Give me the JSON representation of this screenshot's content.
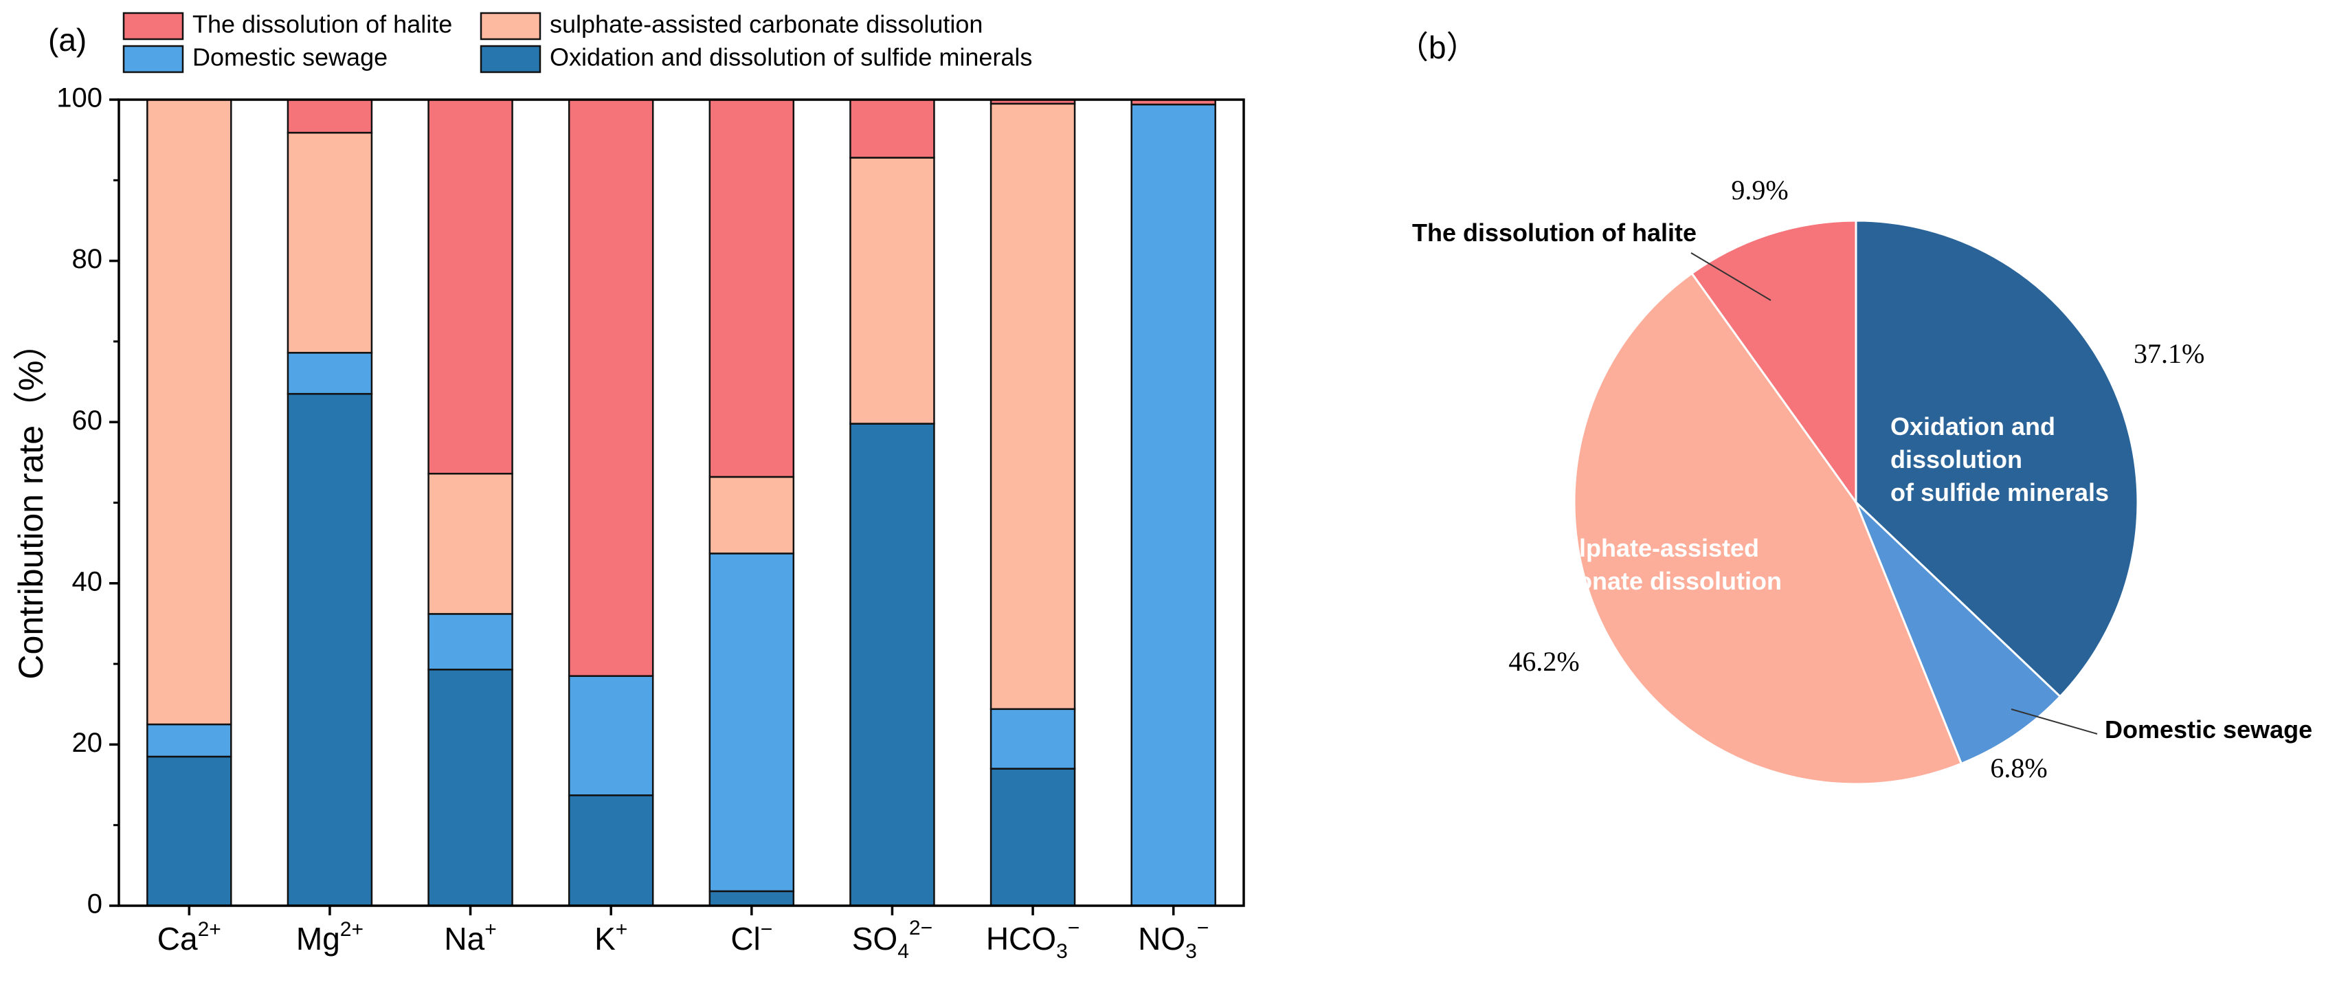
{
  "chart_data": [
    {
      "panel": "(a)",
      "type": "bar",
      "stacked": true,
      "ylabel": "Contribution rate（%）",
      "ylim": [
        0,
        100
      ],
      "yticks": [
        "0",
        "20",
        "40",
        "60",
        "80",
        "100"
      ],
      "categories": [
        {
          "base": "Ca",
          "sub": "",
          "sup": "2+"
        },
        {
          "base": "Mg",
          "sub": "",
          "sup": "2+"
        },
        {
          "base": "Na",
          "sub": "",
          "sup": "+"
        },
        {
          "base": "K",
          "sub": "",
          "sup": "+"
        },
        {
          "base": "Cl",
          "sub": "",
          "sup": "−"
        },
        {
          "base": "SO",
          "sub": "4",
          "sup": "2−"
        },
        {
          "base": "HCO",
          "sub": "3",
          "sup": "−"
        },
        {
          "base": "NO",
          "sub": "3",
          "sup": "−"
        }
      ],
      "series": [
        {
          "name": "Oxidation and dissolution of sulfide minerals",
          "color": "#2777ae",
          "values": [
            18.5,
            63.5,
            29.3,
            13.7,
            1.8,
            59.8,
            17.0,
            0.0
          ]
        },
        {
          "name": "Domestic sewage",
          "color": "#51a4e5",
          "values": [
            4.0,
            5.1,
            6.9,
            14.8,
            41.9,
            0.0,
            7.4,
            99.4
          ]
        },
        {
          "name": "sulphate-assisted carbonate dissolution",
          "color": "#fdbaa1",
          "values": [
            77.5,
            27.3,
            17.4,
            0.0,
            9.5,
            33.0,
            75.1,
            0.0
          ]
        },
        {
          "name": "The dissolution of halite",
          "color": "#f5747a",
          "values": [
            0.0,
            4.1,
            46.4,
            71.5,
            46.8,
            7.2,
            0.5,
            0.6
          ]
        }
      ],
      "legend": [
        {
          "name": "The dissolution of halite",
          "color": "#f5747a"
        },
        {
          "name": "sulphate-assisted carbonate dissolution",
          "color": "#fdbaa1"
        },
        {
          "name": "Domestic sewage",
          "color": "#51a4e5"
        },
        {
          "name": "Oxidation and dissolution of sulfide minerals",
          "color": "#2777ae"
        }
      ]
    },
    {
      "panel": "（b）",
      "type": "pie",
      "slices": [
        {
          "name": "Oxidation and dissolution of sulfide minerals",
          "label_lines": [
            "Oxidation and",
            "dissolution",
            "of sulfide minerals"
          ],
          "value": 37.1,
          "pct": "37.1%",
          "color": "#2a6398"
        },
        {
          "name": "Domestic sewage",
          "label_lines": [
            "Domestic sewage"
          ],
          "value": 6.8,
          "pct": "6.8%",
          "color": "#5594d7"
        },
        {
          "name": "Sulphate-assisted carbonate dissolution",
          "label_lines": [
            "Sulphate-assisted",
            "carbonate dissolution"
          ],
          "value": 46.2,
          "pct": "46.2%",
          "color": "#fdae9b"
        },
        {
          "name": "The dissolution of halite",
          "label_lines": [
            "The dissolution of halite"
          ],
          "value": 9.9,
          "pct": "9.9%",
          "color": "#f5757b"
        }
      ]
    }
  ]
}
